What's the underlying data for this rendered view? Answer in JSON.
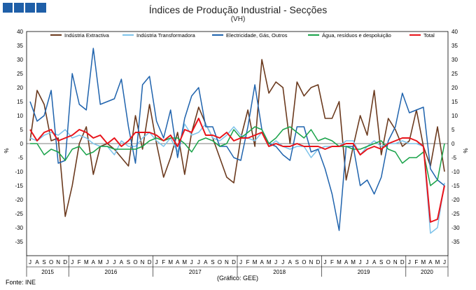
{
  "header": {
    "title": "Índices de Produção Industrial - Secções",
    "subtitle": "(VH)"
  },
  "footer": {
    "source": "Fonte: INE",
    "credit": "(Gráfico: GEE)"
  },
  "colors": {
    "logo": "#1f5fa8",
    "extractive": "#6b3a1e",
    "manufacturing": "#7ec3ea",
    "electricity": "#1f63ad",
    "water": "#1aa34a",
    "total": "#e8131a"
  },
  "chart_data": {
    "type": "line",
    "ylabel_left": "%",
    "ylabel_right": "%",
    "ylim": [
      -40,
      40
    ],
    "yticks": [
      -35,
      -30,
      -25,
      -20,
      -15,
      -10,
      -5,
      0,
      5,
      10,
      15,
      20,
      25,
      30,
      35,
      40
    ],
    "legend_position": "top",
    "month_labels": [
      "J",
      "A",
      "S",
      "O",
      "N",
      "D",
      "J",
      "F",
      "M",
      "A",
      "M",
      "J",
      "J",
      "A",
      "S",
      "O",
      "N",
      "D",
      "J",
      "F",
      "M",
      "A",
      "M",
      "J",
      "J",
      "A",
      "S",
      "O",
      "N",
      "D",
      "J",
      "F",
      "M",
      "A",
      "M",
      "J",
      "J",
      "A",
      "S",
      "O",
      "N",
      "D",
      "J",
      "F",
      "M",
      "A",
      "M",
      "J",
      "J",
      "A",
      "S",
      "O",
      "N",
      "D",
      "J",
      "F",
      "M",
      "A",
      "M",
      "J"
    ],
    "years": [
      {
        "label": "2015",
        "start": 0,
        "end": 5
      },
      {
        "label": "2016",
        "start": 6,
        "end": 17
      },
      {
        "label": "2017",
        "start": 18,
        "end": 29
      },
      {
        "label": "2018",
        "start": 30,
        "end": 41
      },
      {
        "label": "2019",
        "start": 42,
        "end": 53
      },
      {
        "label": "2020",
        "start": 54,
        "end": 59
      }
    ],
    "series": [
      {
        "name": "Indústria Extractiva",
        "key": "extractive",
        "values": [
          1,
          19,
          14,
          1,
          2,
          -26,
          -15,
          0,
          6,
          -11,
          -1,
          0,
          -2,
          -5,
          -8,
          10,
          -2,
          14,
          0,
          -12,
          -5,
          4,
          -11,
          4,
          13,
          7,
          2,
          -5,
          -12,
          -14,
          2,
          12,
          -1,
          30,
          18,
          22,
          20,
          0,
          22,
          17,
          20,
          21,
          9,
          9,
          15,
          -13,
          -1,
          10,
          3,
          19,
          -4,
          9,
          5,
          -1,
          1,
          12,
          -1,
          -8,
          6,
          -10
        ]
      },
      {
        "name": "Indústria Transformadora",
        "key": "manufacturing",
        "values": [
          2,
          1,
          3,
          4,
          3,
          5,
          2,
          3,
          2,
          0,
          -1,
          -1,
          -4,
          1,
          -1,
          -1,
          2,
          4,
          1,
          -1,
          2,
          -3,
          7,
          3,
          4,
          7,
          2,
          1,
          3,
          6,
          3,
          2,
          1,
          4,
          -1,
          1,
          -1,
          -2,
          -1,
          -1,
          -5,
          -2,
          -1,
          -1,
          -1,
          1,
          1,
          -4,
          -1,
          1,
          -1,
          0,
          0,
          1,
          0,
          0,
          -1,
          -32,
          -30,
          -14
        ]
      },
      {
        "name": "Electricidade, Gás, Outros",
        "key": "electricity",
        "values": [
          15,
          8,
          10,
          19,
          -7,
          -6,
          25,
          14,
          12,
          34,
          14,
          15,
          16,
          23,
          6,
          -7,
          21,
          24,
          8,
          2,
          12,
          -5,
          9,
          17,
          20,
          6,
          6,
          -1,
          -1,
          -5,
          -6,
          6,
          21,
          5,
          0,
          -1,
          -4,
          -6,
          6,
          6,
          -3,
          -2,
          -9,
          -18,
          -31,
          -1,
          -1,
          -15,
          -13,
          -18,
          -12,
          1,
          6,
          18,
          11,
          12,
          13,
          -9,
          -13,
          -15
        ]
      },
      {
        "name": "Água, resíduos e despoluição",
        "key": "water",
        "values": [
          0,
          0,
          -4,
          -2,
          -3,
          -6,
          -2,
          -1,
          -4,
          -3,
          -1,
          -1,
          -2,
          -2,
          -2,
          -2,
          -1,
          1,
          2,
          1,
          2,
          2,
          0,
          -3,
          1,
          2,
          1,
          -1,
          0,
          5,
          2,
          4,
          6,
          5,
          0,
          2,
          5,
          6,
          4,
          2,
          5,
          1,
          2,
          1,
          -1,
          -1,
          -2,
          -2,
          -1,
          0,
          1,
          -2,
          -3,
          -7,
          -5,
          -5,
          -3,
          -15,
          -13,
          0
        ]
      },
      {
        "name": "Total",
        "key": "total",
        "values": [
          5,
          1,
          4,
          5,
          1,
          2,
          3,
          5,
          4,
          2,
          3,
          0,
          2,
          -1,
          1,
          4,
          4,
          4,
          3,
          1,
          3,
          -1,
          5,
          4,
          9,
          3,
          3,
          2,
          4,
          1,
          2,
          2,
          3,
          4,
          -1,
          0,
          -1,
          -1,
          0,
          -1,
          -1,
          -1,
          -2,
          -1,
          -1,
          0,
          0,
          -4,
          -2,
          -1,
          -2,
          0,
          1,
          2,
          2,
          1,
          -1,
          -28,
          -27,
          -15
        ]
      }
    ]
  }
}
